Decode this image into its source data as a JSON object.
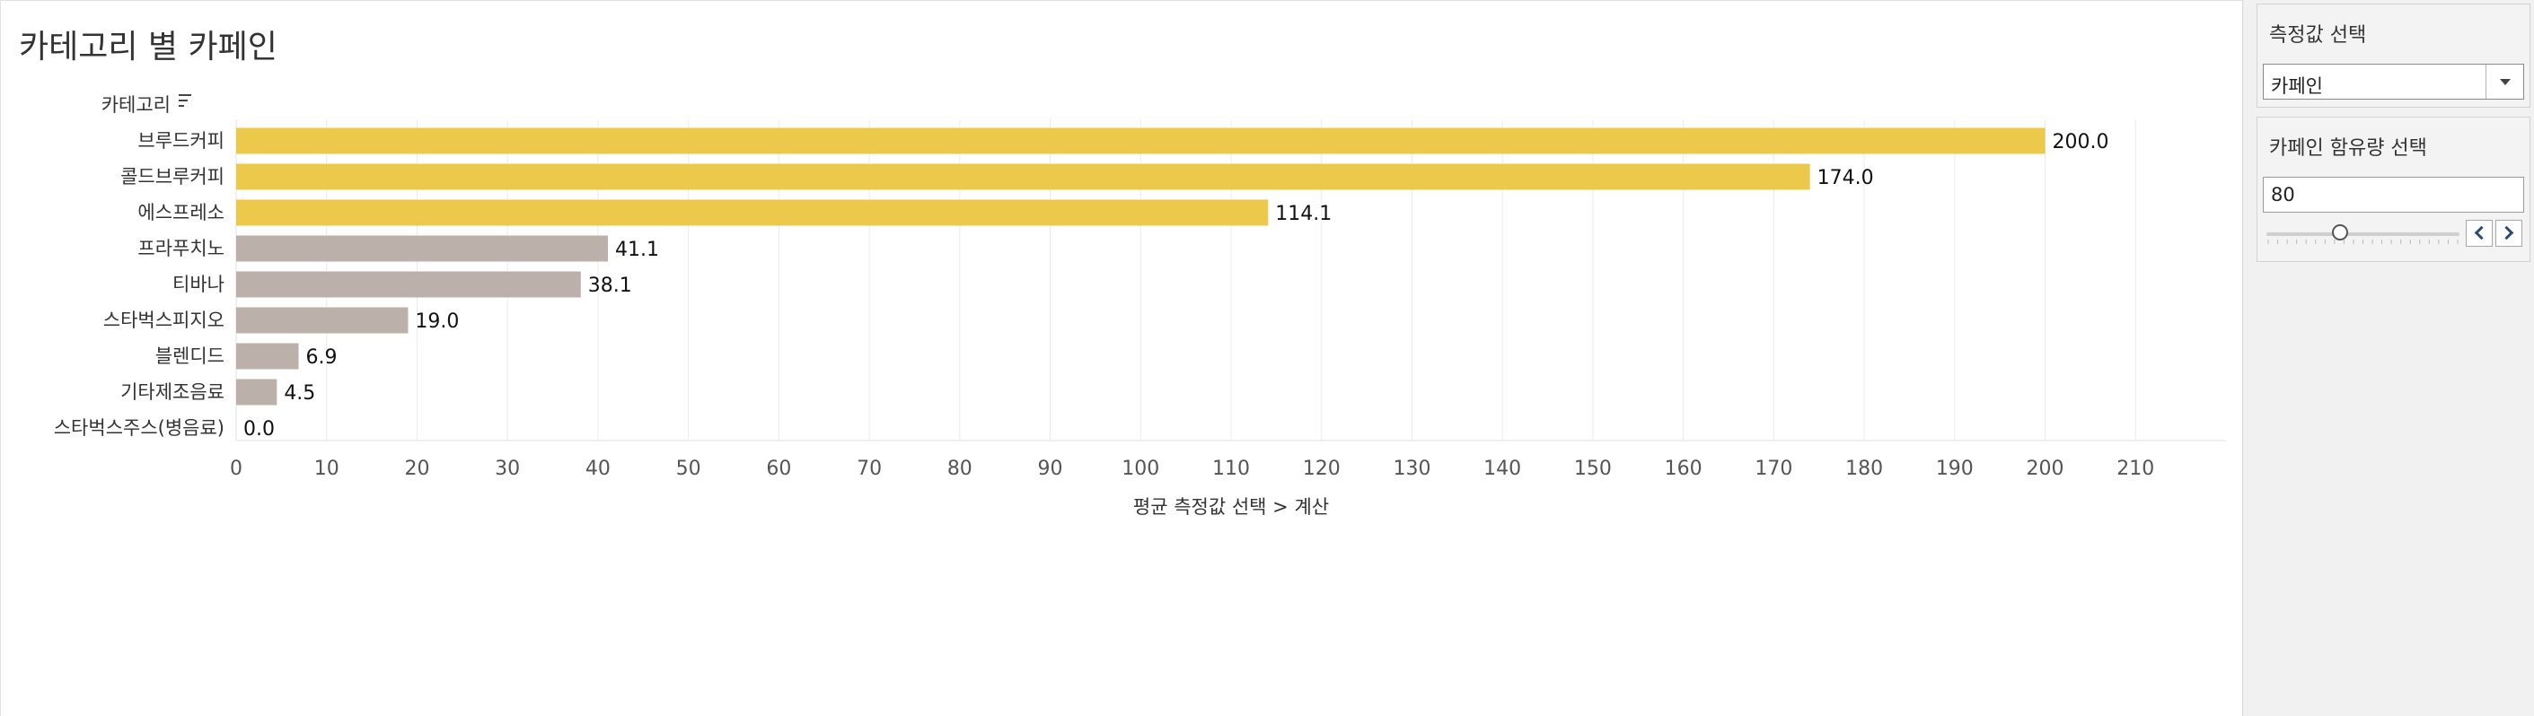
{
  "page": {
    "title": "카테고리 별 카페인"
  },
  "chart_data": {
    "type": "bar",
    "orientation": "horizontal",
    "row_header": "카테고리",
    "categories": [
      "브루드커피",
      "콜드브루커피",
      "에스프레소",
      "프라푸치노",
      "티바나",
      "스타벅스피지오",
      "블렌디드",
      "기타제조음료",
      "스타벅스주스(병음료)"
    ],
    "values": [
      200.0,
      174.0,
      114.1,
      41.1,
      38.1,
      19.0,
      6.9,
      4.5,
      0.0
    ],
    "value_labels": [
      "200.0",
      "174.0",
      "114.1",
      "41.1",
      "38.1",
      "19.0",
      "6.9",
      "4.5",
      "0.0"
    ],
    "highlighted": [
      true,
      true,
      true,
      false,
      false,
      false,
      false,
      false,
      false
    ],
    "colors": {
      "highlight": "#ecc94b",
      "other": "#bcb0ab"
    },
    "xlabel": "평균 측정값 선택 > 계산",
    "xlim": [
      0,
      220
    ],
    "xticks": [
      0,
      10,
      20,
      30,
      40,
      50,
      60,
      70,
      80,
      90,
      100,
      110,
      120,
      130,
      140,
      150,
      160,
      170,
      180,
      190,
      200,
      210
    ],
    "grid": true
  },
  "filters": {
    "measure": {
      "title": "측정값 선택",
      "value": "카페인"
    },
    "caffeine": {
      "title": "카페인 함유량 선택",
      "value": "80",
      "slider_fraction": 0.38
    }
  }
}
